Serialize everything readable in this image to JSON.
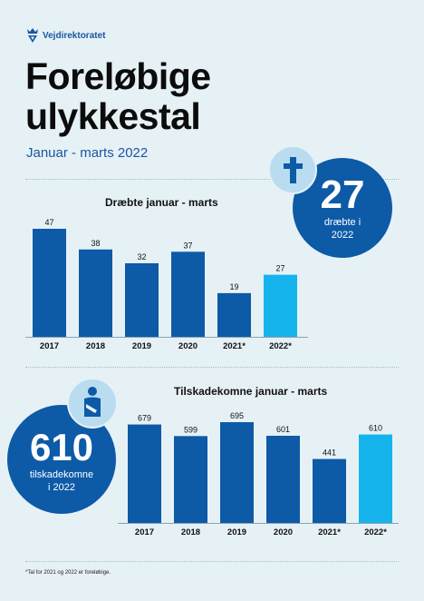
{
  "brand": {
    "name": "Vejdirektoratet"
  },
  "title_line1": "Foreløbige",
  "title_line2": "ulykkestal",
  "subtitle": "Januar - marts 2022",
  "killed_badge": {
    "number": "27",
    "label_line1": "dræbte i",
    "label_line2": "2022",
    "icon": "cross-icon"
  },
  "injured_badge": {
    "number": "610",
    "label_line1": "tilskadekomne",
    "label_line2": "i 2022",
    "icon": "injured-person-icon"
  },
  "footnote": "*Tal for 2021 og 2022 er foreløbige.",
  "colors": {
    "dark_bar": "#0d5aa7",
    "highlight_bar": "#16b4ec",
    "brand_blue": "#1a56a0",
    "background": "#e6f1f6"
  },
  "chart_data": [
    {
      "type": "bar",
      "title": "Dræbte januar - marts",
      "categories": [
        "2017",
        "2018",
        "2019",
        "2020",
        "2021*",
        "2022*"
      ],
      "values": [
        47,
        38,
        32,
        37,
        19,
        27
      ],
      "ylim": [
        0,
        47
      ],
      "highlight_index": 5
    },
    {
      "type": "bar",
      "title": "Tilskadekomne januar - marts",
      "categories": [
        "2017",
        "2018",
        "2019",
        "2020",
        "2021*",
        "2022*"
      ],
      "values": [
        679,
        599,
        695,
        601,
        441,
        610
      ],
      "ylim": [
        0,
        695
      ],
      "highlight_index": 5
    }
  ]
}
